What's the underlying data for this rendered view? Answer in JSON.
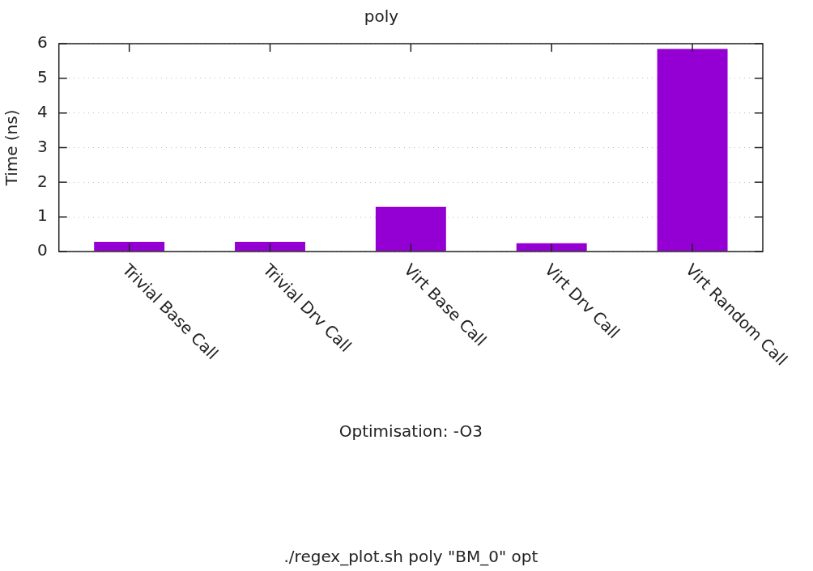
{
  "chart_data": {
    "type": "bar",
    "title": "poly",
    "xlabel": "Optimisation: -O3",
    "ylabel": "Time (ns)",
    "categories": [
      "Trivial Base Call",
      "Trivial Drv Call",
      "Virt Base Call",
      "Virt Drv Call",
      "Virt Random Call"
    ],
    "values": [
      0.28,
      0.28,
      1.29,
      0.24,
      5.85
    ],
    "color": "#9400d3",
    "ylim": [
      0,
      6
    ],
    "yticks": [
      0,
      1,
      2,
      3,
      4,
      5,
      6
    ],
    "grid": "y",
    "annotations": [
      "./regex_plot.sh poly \"BM_0\" opt"
    ]
  }
}
